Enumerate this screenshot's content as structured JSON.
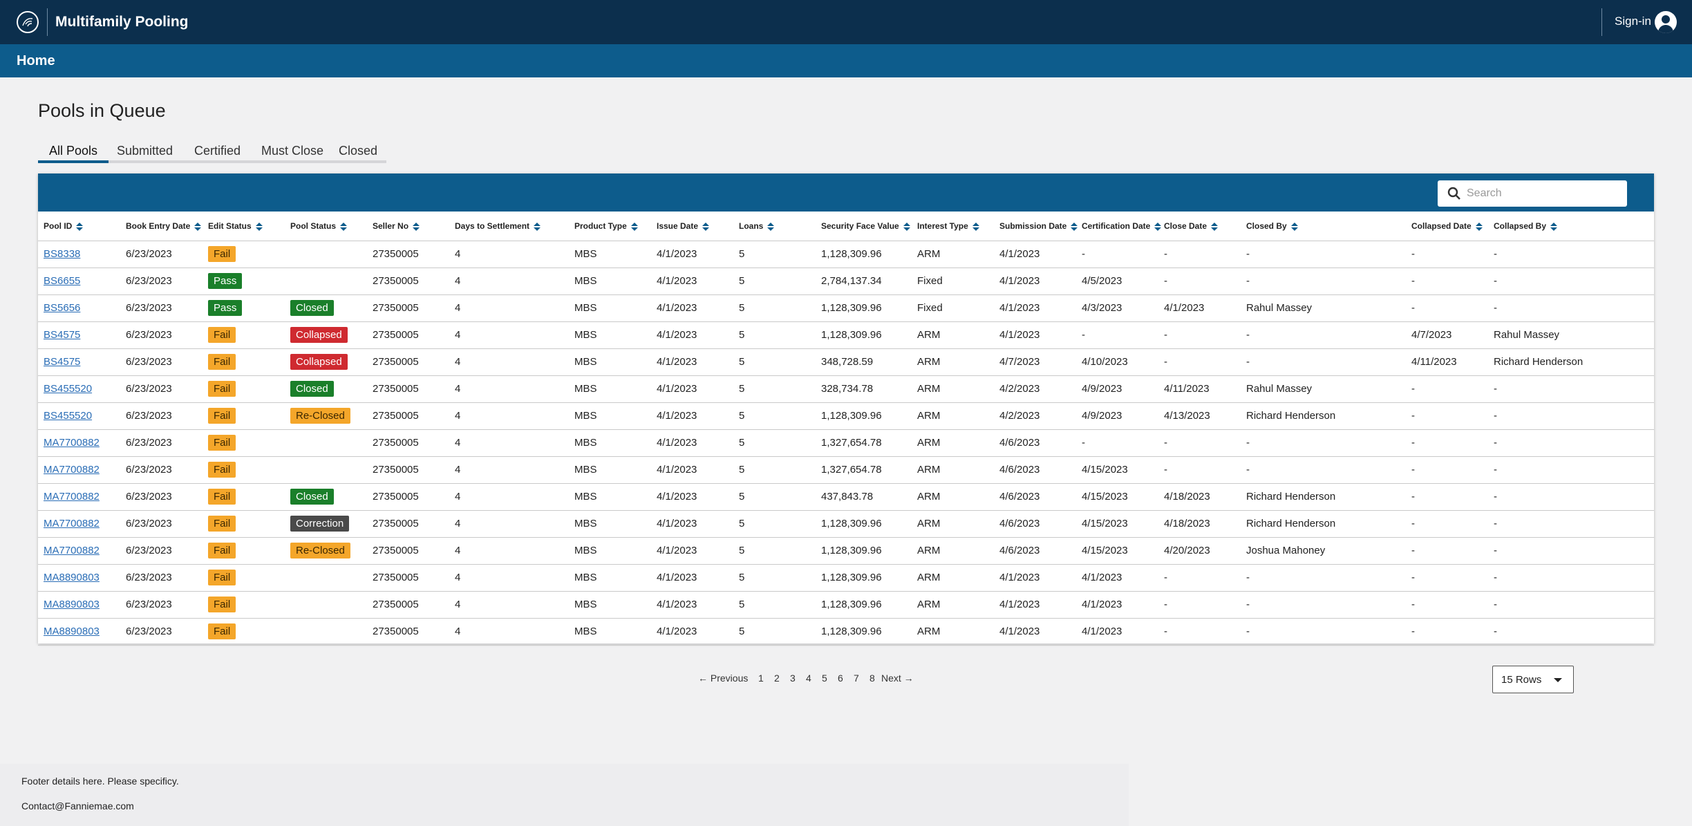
{
  "app": {
    "title": "Multifamily Pooling",
    "sign_in": "Sign-in"
  },
  "breadcrumb": {
    "home": "Home"
  },
  "page": {
    "title": "Pools in Queue"
  },
  "tabs": [
    {
      "label": "All Pools",
      "active": true
    },
    {
      "label": "Submitted",
      "active": false
    },
    {
      "label": "Certified",
      "active": false
    },
    {
      "label": "Must Close",
      "active": false
    },
    {
      "label": "Closed",
      "active": false
    }
  ],
  "search": {
    "placeholder": "Search",
    "icon": "search-icon"
  },
  "table": {
    "columns": [
      "Pool ID",
      "Book Entry Date",
      "Edit Status",
      "Pool Status",
      "Seller No",
      "Days to Settlement",
      "Product Type",
      "Issue Date",
      "Loans",
      "Security Face Value",
      "Interest Type",
      "Submission Date",
      "Certification Date",
      "Close Date",
      "Closed By",
      "Collapsed Date",
      "Collapsed By"
    ],
    "rows": [
      [
        "BS8338",
        "6/23/2023",
        "Fail",
        "",
        "27350005",
        "4",
        "MBS",
        "4/1/2023",
        "5",
        "1,128,309.96",
        "ARM",
        "4/1/2023",
        "-",
        "-",
        "-",
        "-",
        "-"
      ],
      [
        "BS6655",
        "6/23/2023",
        "Pass",
        "",
        "27350005",
        "4",
        "MBS",
        "4/1/2023",
        "5",
        "2,784,137.34",
        "Fixed",
        "4/1/2023",
        "4/5/2023",
        "-",
        "-",
        "-",
        "-"
      ],
      [
        "BS5656",
        "6/23/2023",
        "Pass",
        "Closed",
        "27350005",
        "4",
        "MBS",
        "4/1/2023",
        "5",
        "1,128,309.96",
        "Fixed",
        "4/1/2023",
        "4/3/2023",
        "4/1/2023",
        "Rahul Massey",
        "-",
        "-"
      ],
      [
        "BS4575",
        "6/23/2023",
        "Fail",
        "Collapsed",
        "27350005",
        "4",
        "MBS",
        "4/1/2023",
        "5",
        "1,128,309.96",
        "ARM",
        "4/1/2023",
        "-",
        "-",
        "-",
        "4/7/2023",
        "Rahul Massey"
      ],
      [
        "BS4575",
        "6/23/2023",
        "Fail",
        "Collapsed",
        "27350005",
        "4",
        "MBS",
        "4/1/2023",
        "5",
        "348,728.59",
        "ARM",
        "4/7/2023",
        "4/10/2023",
        "-",
        "-",
        "4/11/2023",
        "Richard Henderson"
      ],
      [
        "BS455520",
        "6/23/2023",
        "Fail",
        "Closed",
        "27350005",
        "4",
        "MBS",
        "4/1/2023",
        "5",
        "328,734.78",
        "ARM",
        "4/2/2023",
        "4/9/2023",
        "4/11/2023",
        "Rahul Massey",
        "-",
        "-"
      ],
      [
        "BS455520",
        "6/23/2023",
        "Fail",
        "Re-Closed",
        "27350005",
        "4",
        "MBS",
        "4/1/2023",
        "5",
        "1,128,309.96",
        "ARM",
        "4/2/2023",
        "4/9/2023",
        "4/13/2023",
        "Richard Henderson",
        "-",
        "-"
      ],
      [
        "MA7700882",
        "6/23/2023",
        "Fail",
        "",
        "27350005",
        "4",
        "MBS",
        "4/1/2023",
        "5",
        "1,327,654.78",
        "ARM",
        "4/6/2023",
        "-",
        "-",
        "-",
        "-",
        "-"
      ],
      [
        "MA7700882",
        "6/23/2023",
        "Fail",
        "",
        "27350005",
        "4",
        "MBS",
        "4/1/2023",
        "5",
        "1,327,654.78",
        "ARM",
        "4/6/2023",
        "4/15/2023",
        "-",
        "-",
        "-",
        "-"
      ],
      [
        "MA7700882",
        "6/23/2023",
        "Fail",
        "Closed",
        "27350005",
        "4",
        "MBS",
        "4/1/2023",
        "5",
        "437,843.78",
        "ARM",
        "4/6/2023",
        "4/15/2023",
        "4/18/2023",
        "Richard Henderson",
        "-",
        "-"
      ],
      [
        "MA7700882",
        "6/23/2023",
        "Fail",
        "Correction",
        "27350005",
        "4",
        "MBS",
        "4/1/2023",
        "5",
        "1,128,309.96",
        "ARM",
        "4/6/2023",
        "4/15/2023",
        "4/18/2023",
        "Richard Henderson",
        "-",
        "-"
      ],
      [
        "MA7700882",
        "6/23/2023",
        "Fail",
        "Re-Closed",
        "27350005",
        "4",
        "MBS",
        "4/1/2023",
        "5",
        "1,128,309.96",
        "ARM",
        "4/6/2023",
        "4/15/2023",
        "4/20/2023",
        "Joshua Mahoney",
        "-",
        "-"
      ],
      [
        "MA8890803",
        "6/23/2023",
        "Fail",
        "",
        "27350005",
        "4",
        "MBS",
        "4/1/2023",
        "5",
        "1,128,309.96",
        "ARM",
        "4/1/2023",
        "4/1/2023",
        "-",
        "-",
        "-",
        "-"
      ],
      [
        "MA8890803",
        "6/23/2023",
        "Fail",
        "",
        "27350005",
        "4",
        "MBS",
        "4/1/2023",
        "5",
        "1,128,309.96",
        "ARM",
        "4/1/2023",
        "4/1/2023",
        "-",
        "-",
        "-",
        "-"
      ],
      [
        "MA8890803",
        "6/23/2023",
        "Fail",
        "",
        "27350005",
        "4",
        "MBS",
        "4/1/2023",
        "5",
        "1,128,309.96",
        "ARM",
        "4/1/2023",
        "4/1/2023",
        "-",
        "-",
        "-",
        "-"
      ]
    ]
  },
  "pagination": {
    "previous": "Previous",
    "pages": [
      "1",
      "2",
      "3",
      "4",
      "5",
      "6",
      "7",
      "8"
    ],
    "next": "Next",
    "rows_per_page": "15 Rows"
  },
  "footer": {
    "line1": "Footer details here. Please specificy.",
    "line2": "Contact@Fanniemae.com"
  },
  "colors": {
    "topbar": "#0c2f4d",
    "primary": "#0d5c8c",
    "fail": "#f4a62a",
    "pass": "#1a7f2a",
    "collapsed": "#cf2a30",
    "correction": "#4a4a4a"
  }
}
